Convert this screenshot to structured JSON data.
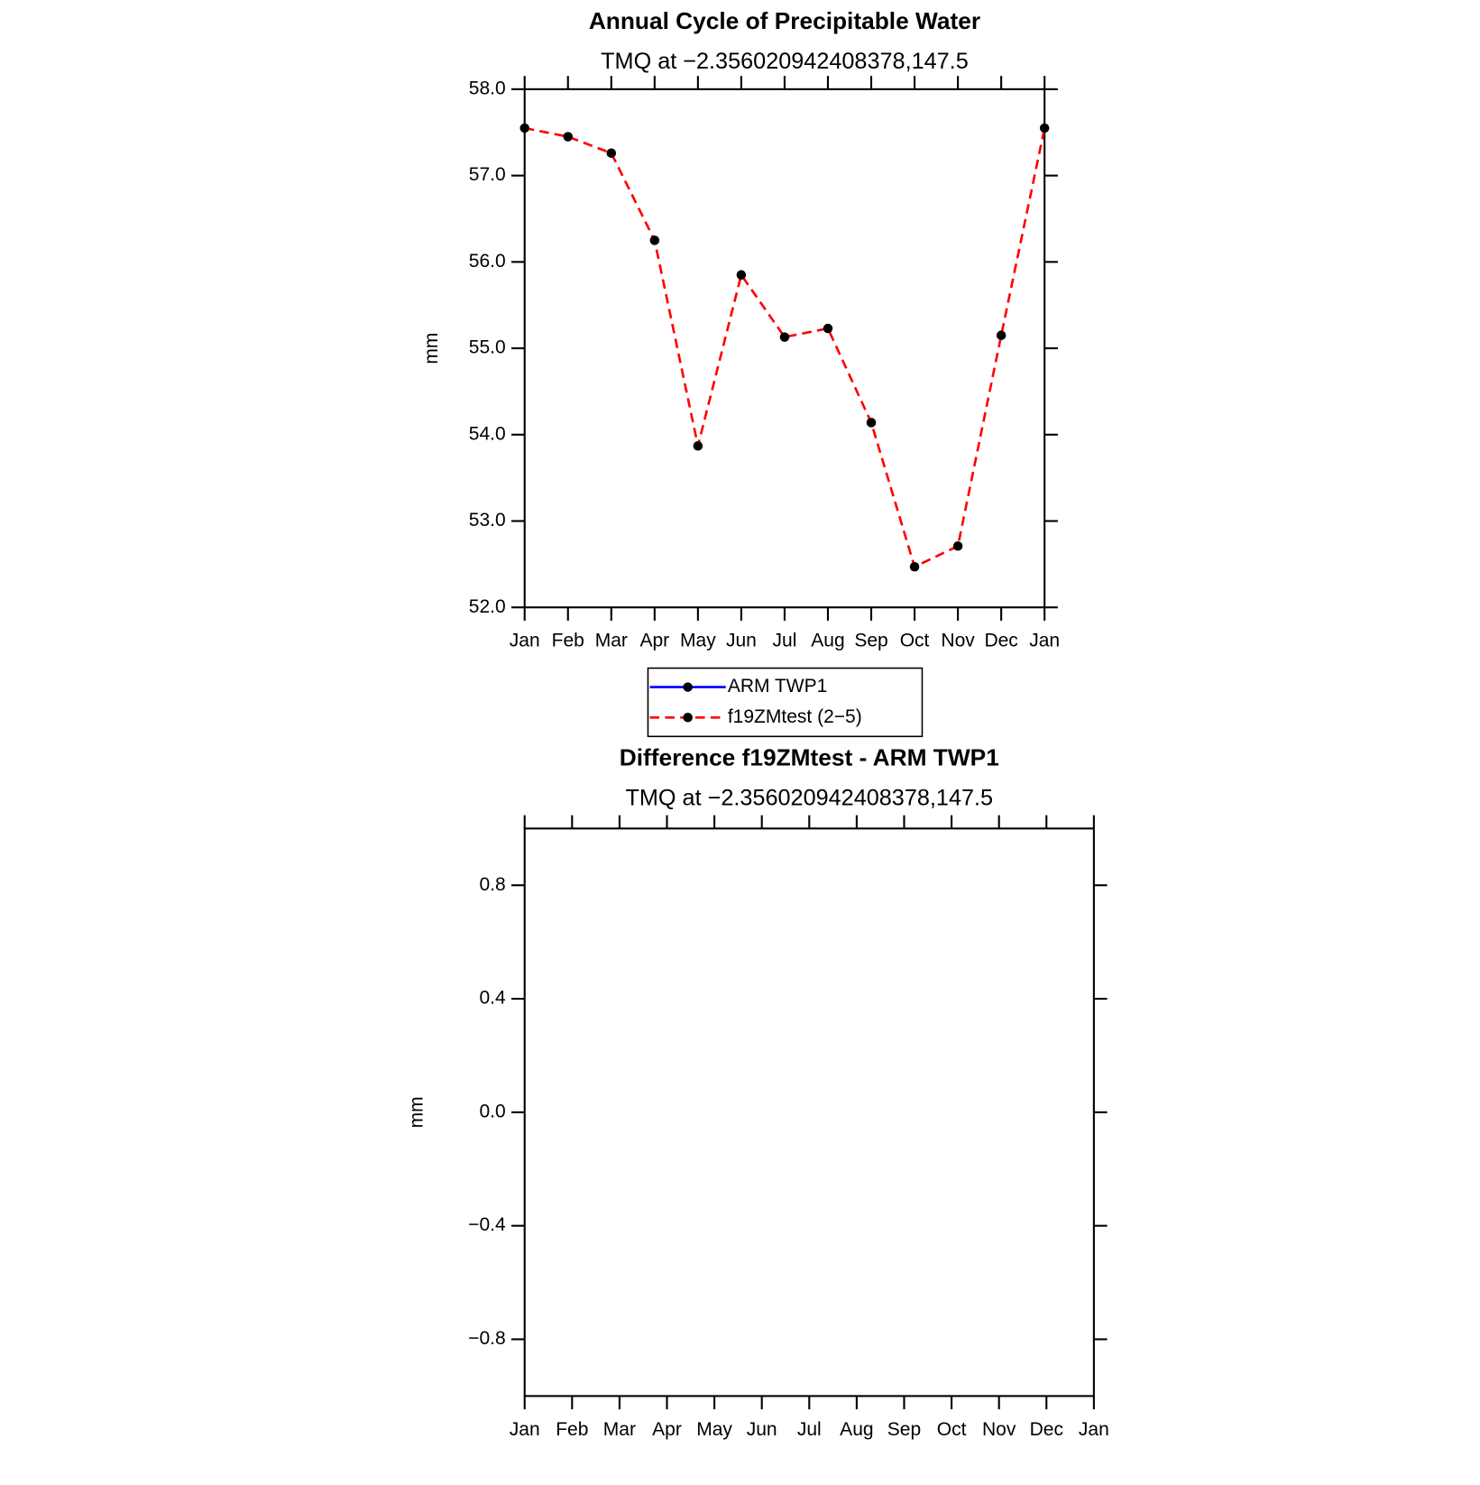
{
  "chart_data": [
    {
      "type": "line",
      "title": "Annual Cycle of Precipitable Water",
      "subtitle": "TMQ at −2.356020942408378,147.5",
      "ylabel": "mm",
      "categories": [
        "Jan",
        "Feb",
        "Mar",
        "Apr",
        "May",
        "Jun",
        "Jul",
        "Aug",
        "Sep",
        "Oct",
        "Nov",
        "Dec",
        "Jan"
      ],
      "series": [
        {
          "name": "ARM TWP1",
          "color": "#0000ff",
          "dash": false,
          "values": [
            null,
            null,
            null,
            null,
            null,
            null,
            null,
            null,
            null,
            null,
            null,
            null,
            null
          ]
        },
        {
          "name": "f19ZMtest (2−5)",
          "color": "#ff0000",
          "dash": true,
          "values": [
            57.55,
            57.45,
            57.26,
            56.25,
            53.87,
            55.85,
            55.13,
            55.23,
            54.14,
            52.47,
            52.71,
            55.15,
            57.55
          ]
        }
      ],
      "ylim": [
        52,
        58
      ],
      "yticks": [
        {
          "value": 52,
          "label": "52.0"
        },
        {
          "value": 53,
          "label": "53.0"
        },
        {
          "value": 54,
          "label": "54.0"
        },
        {
          "value": 55,
          "label": "55.0"
        },
        {
          "value": 56,
          "label": "56.0"
        },
        {
          "value": 57,
          "label": "57.0"
        },
        {
          "value": 58,
          "label": "58.0"
        }
      ],
      "legend": "bottom"
    },
    {
      "type": "line",
      "title": "Difference f19ZMtest - ARM TWP1",
      "subtitle": "TMQ at −2.356020942408378,147.5",
      "ylabel": "mm",
      "categories": [
        "Jan",
        "Feb",
        "Mar",
        "Apr",
        "May",
        "Jun",
        "Jul",
        "Aug",
        "Sep",
        "Oct",
        "Nov",
        "Dec",
        "Jan"
      ],
      "ylim": [
        -1,
        1
      ],
      "yticks": [
        {
          "value": -0.8,
          "label": "−0.8"
        },
        {
          "value": -0.4,
          "label": "−0.4"
        },
        {
          "value": 0,
          "label": "0.0"
        },
        {
          "value": 0.4,
          "label": "0.4"
        },
        {
          "value": 0.8,
          "label": "0.8"
        }
      ]
    }
  ]
}
